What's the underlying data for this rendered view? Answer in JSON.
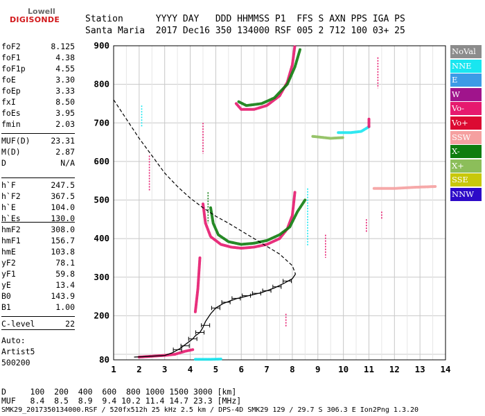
{
  "logo": {
    "line1": "Lowell",
    "line2": "DIGISONDE"
  },
  "header": {
    "line1": "Station      YYYY DAY   DDD HHMMSS P1  FFS S AXN PPS IGA PS",
    "line2": "Santa Maria  2017 Dec16 350 134000 RSF 005 2 712 100 03+ 25"
  },
  "params": {
    "group1": [
      {
        "k": "foF2",
        "v": "8.125"
      },
      {
        "k": "foF1",
        "v": "4.38"
      },
      {
        "k": "foF1p",
        "v": "4.55"
      },
      {
        "k": "foE",
        "v": "3.30"
      },
      {
        "k": "foEp",
        "v": "3.33"
      },
      {
        "k": "fxI",
        "v": "8.50"
      },
      {
        "k": "foEs",
        "v": "3.95"
      },
      {
        "k": "fmin",
        "v": "2.03"
      }
    ],
    "group2": [
      {
        "k": "MUF(D)",
        "v": "23.31"
      },
      {
        "k": "M(D)",
        "v": "2.87"
      },
      {
        "k": "D",
        "v": "N/A"
      }
    ],
    "group3": [
      {
        "k": "h`F",
        "v": "247.5"
      },
      {
        "k": "h`F2",
        "v": "367.5"
      },
      {
        "k": "h`E",
        "v": "104.0"
      },
      {
        "k": "h`Es",
        "v": "130.0"
      }
    ],
    "group4": [
      {
        "k": "hmF2",
        "v": "308.0"
      },
      {
        "k": "hmF1",
        "v": "156.7"
      },
      {
        "k": "hmE",
        "v": "103.8"
      },
      {
        "k": "yF2",
        "v": "78.1"
      },
      {
        "k": "yF1",
        "v": "59.8"
      },
      {
        "k": "yE",
        "v": "13.4"
      },
      {
        "k": "B0",
        "v": "143.9"
      },
      {
        "k": "B1",
        "v": "1.00"
      }
    ],
    "group5": [
      {
        "k": "C-level",
        "v": "22"
      }
    ],
    "auto_lines": [
      "Auto:",
      "Artist5",
      "500200"
    ]
  },
  "legend": [
    {
      "label": "NoVal",
      "color": "#8c8c8c"
    },
    {
      "label": "NNE",
      "color": "#19e6f0"
    },
    {
      "label": "E",
      "color": "#3c9be6"
    },
    {
      "label": "W",
      "color": "#a0148c"
    },
    {
      "label": "Vo-",
      "color": "#e6196e"
    },
    {
      "label": "Vo+",
      "color": "#dc0a32"
    },
    {
      "label": "SSW",
      "color": "#f5a0a0"
    },
    {
      "label": "X-",
      "color": "#0f7d0f"
    },
    {
      "label": "X+",
      "color": "#8cbe5a"
    },
    {
      "label": "SSE",
      "color": "#c8c80a"
    },
    {
      "label": "NNW",
      "color": "#2d0ac8"
    }
  ],
  "footer": {
    "line1": "D     100  200  400  600  800 1000 1500 3000 [km]",
    "line2": "MUF   8.4  8.5  8.9  9.4 10.2 11.4 14.7 23.3 [MHz]",
    "line3": "SMK29_2017350134000.RSF / 520fx512h 25 kHz 2.5 km / DPS-4D SMK29 129 / 29.7 S 306.3 E Ion2Png 1.3.20"
  },
  "chart_data": {
    "type": "scatter",
    "xlim": [
      1,
      14
    ],
    "ylim": [
      80,
      900
    ],
    "xticks": [
      1,
      2,
      3,
      4,
      5,
      6,
      7,
      8,
      9,
      10,
      11,
      12,
      13,
      14
    ],
    "yticks": [
      80,
      100,
      200,
      300,
      400,
      500,
      600,
      700,
      800,
      900
    ],
    "ytick_labels": [
      "80",
      "",
      "200",
      "300",
      "400",
      "500",
      "600",
      "700",
      "800",
      "900"
    ],
    "grid": true,
    "true_height_profile": [
      [
        1.8,
        90
      ],
      [
        2.3,
        92
      ],
      [
        3.0,
        96
      ],
      [
        3.3,
        103.8
      ],
      [
        3.6,
        115
      ],
      [
        3.9,
        130
      ],
      [
        4.1,
        140
      ],
      [
        4.2,
        148
      ],
      [
        4.38,
        156.7
      ],
      [
        4.5,
        170
      ],
      [
        4.6,
        185
      ],
      [
        4.8,
        205
      ],
      [
        5.0,
        220
      ],
      [
        5.3,
        232
      ],
      [
        5.8,
        244
      ],
      [
        6.3,
        252
      ],
      [
        6.8,
        260
      ],
      [
        7.3,
        272
      ],
      [
        7.7,
        285
      ],
      [
        8.0,
        296
      ],
      [
        8.125,
        308
      ]
    ],
    "true_height_errorbar_points": [
      [
        3.5,
        112
      ],
      [
        3.8,
        122
      ],
      [
        4.1,
        140
      ],
      [
        4.38,
        156.7
      ],
      [
        4.6,
        175
      ],
      [
        5.0,
        220
      ],
      [
        5.4,
        235
      ],
      [
        5.8,
        245
      ],
      [
        6.2,
        252
      ],
      [
        6.6,
        258
      ],
      [
        7.0,
        265
      ],
      [
        7.4,
        275
      ],
      [
        7.8,
        290
      ]
    ],
    "dashed_profile": [
      [
        1.0,
        760
      ],
      [
        1.5,
        710
      ],
      [
        2.0,
        660
      ],
      [
        2.5,
        615
      ],
      [
        3.0,
        570
      ],
      [
        3.5,
        535
      ],
      [
        4.0,
        505
      ],
      [
        4.5,
        480
      ],
      [
        5.0,
        458
      ],
      [
        5.5,
        440
      ],
      [
        6.0,
        420
      ],
      [
        6.5,
        400
      ],
      [
        7.0,
        380
      ],
      [
        7.5,
        360
      ],
      [
        8.0,
        330
      ],
      [
        8.125,
        308
      ]
    ],
    "traces": [
      {
        "series": "Vo-",
        "type": "curve",
        "points": [
          [
            4.5,
            490
          ],
          [
            4.6,
            440
          ],
          [
            4.8,
            405
          ],
          [
            5.2,
            385
          ],
          [
            5.6,
            378
          ],
          [
            6.0,
            375
          ],
          [
            6.5,
            378
          ],
          [
            7.0,
            385
          ],
          [
            7.5,
            400
          ],
          [
            7.8,
            425
          ],
          [
            8.0,
            460
          ],
          [
            8.1,
            520
          ]
        ]
      },
      {
        "series": "X-",
        "type": "curve",
        "points": [
          [
            4.8,
            480
          ],
          [
            4.9,
            440
          ],
          [
            5.1,
            410
          ],
          [
            5.5,
            392
          ],
          [
            6.0,
            385
          ],
          [
            6.5,
            388
          ],
          [
            7.0,
            395
          ],
          [
            7.5,
            410
          ],
          [
            7.9,
            430
          ],
          [
            8.2,
            470
          ],
          [
            8.5,
            500
          ]
        ]
      },
      {
        "series": "Vo-",
        "type": "curve",
        "points": [
          [
            5.8,
            750
          ],
          [
            6.0,
            735
          ],
          [
            6.5,
            735
          ],
          [
            7.0,
            745
          ],
          [
            7.5,
            770
          ],
          [
            7.8,
            805
          ],
          [
            8.0,
            850
          ],
          [
            8.1,
            900
          ]
        ]
      },
      {
        "series": "X-",
        "type": "curve",
        "points": [
          [
            5.9,
            755
          ],
          [
            6.2,
            745
          ],
          [
            6.8,
            750
          ],
          [
            7.3,
            765
          ],
          [
            7.8,
            800
          ],
          [
            8.1,
            845
          ],
          [
            8.3,
            890
          ]
        ]
      },
      {
        "series": "Vo-",
        "type": "curve",
        "points": [
          [
            4.2,
            210
          ],
          [
            4.3,
            270
          ],
          [
            4.35,
            320
          ],
          [
            4.38,
            350
          ]
        ]
      },
      {
        "series": "Vo-",
        "type": "curve",
        "points": [
          [
            2.0,
            90
          ],
          [
            2.5,
            93
          ],
          [
            3.0,
            96
          ],
          [
            3.4,
            100
          ],
          [
            3.8,
            108
          ],
          [
            4.1,
            112
          ]
        ]
      },
      {
        "series": "NNE",
        "type": "curve",
        "points": [
          [
            9.8,
            675
          ],
          [
            10.3,
            675
          ],
          [
            10.7,
            678
          ],
          [
            11.0,
            690
          ]
        ]
      },
      {
        "series": "X+",
        "type": "curve",
        "points": [
          [
            8.8,
            665
          ],
          [
            9.5,
            660
          ],
          [
            10.0,
            662
          ]
        ]
      },
      {
        "series": "Vo-",
        "type": "curve",
        "points": [
          [
            11.0,
            690
          ],
          [
            11.0,
            710
          ]
        ]
      },
      {
        "series": "SSW",
        "type": "curve",
        "points": [
          [
            11.2,
            530
          ],
          [
            12.0,
            530
          ],
          [
            12.8,
            533
          ],
          [
            13.6,
            535
          ]
        ]
      },
      {
        "series": "NNE",
        "type": "curve",
        "points": [
          [
            4.2,
            82
          ],
          [
            4.8,
            82
          ],
          [
            5.2,
            83
          ]
        ]
      },
      {
        "series": "Vo-",
        "type": "vline",
        "points": [
          [
            2.4,
            615
          ],
          [
            2.4,
            525
          ]
        ]
      },
      {
        "series": "NNE",
        "type": "vline",
        "points": [
          [
            2.1,
            745
          ],
          [
            2.1,
            690
          ]
        ]
      },
      {
        "series": "Vo-",
        "type": "vline",
        "points": [
          [
            4.5,
            700
          ],
          [
            4.5,
            620
          ]
        ]
      },
      {
        "series": "Vo-",
        "type": "vline",
        "points": [
          [
            11.35,
            870
          ],
          [
            11.35,
            790
          ]
        ]
      },
      {
        "series": "Vo-",
        "type": "vline",
        "points": [
          [
            9.3,
            410
          ],
          [
            9.3,
            350
          ]
        ]
      },
      {
        "series": "X-",
        "type": "vline",
        "points": [
          [
            4.7,
            520
          ],
          [
            4.7,
            440
          ]
        ]
      },
      {
        "series": "NNE",
        "type": "vline",
        "points": [
          [
            8.6,
            530
          ],
          [
            8.6,
            380
          ]
        ]
      },
      {
        "series": "Vo-",
        "type": "vline",
        "points": [
          [
            10.9,
            450
          ],
          [
            10.9,
            415
          ]
        ]
      },
      {
        "series": "Vo-",
        "type": "vline",
        "points": [
          [
            7.75,
            205
          ],
          [
            7.75,
            170
          ]
        ]
      },
      {
        "series": "Vo-",
        "type": "vline",
        "points": [
          [
            11.5,
            470
          ],
          [
            11.5,
            450
          ]
        ]
      }
    ]
  }
}
